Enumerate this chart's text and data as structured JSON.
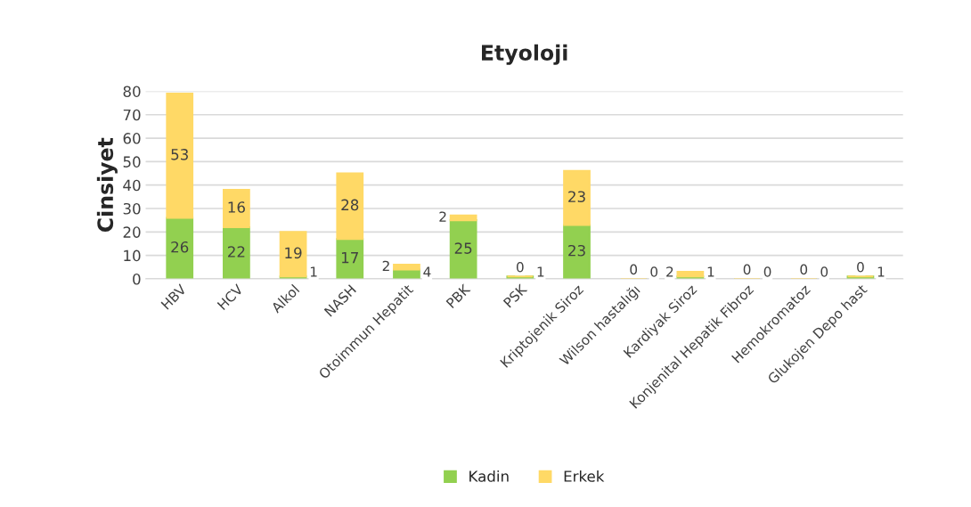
{
  "chart_data": {
    "type": "bar",
    "title": "Etyoloji",
    "ylabel": "Cinsiyet",
    "categories": [
      "HBV",
      "HCV",
      "Alkol",
      "NASH",
      "Otoimmun Hepatit",
      "PBK",
      "PSK",
      "Kriptojenik Siroz",
      "Wilson hastalığı",
      "Kardiyak Siroz",
      "Konjenital Hepatik Fibroz",
      "Hemokromatoz",
      "Glukojen Depo hast"
    ],
    "series": [
      {
        "name": "Kadin",
        "color": "#92d050",
        "values": [
          26,
          22,
          1,
          17,
          4,
          25,
          1,
          23,
          0,
          1,
          0,
          0,
          1
        ]
      },
      {
        "name": "Erkek",
        "color": "#ffd966",
        "values": [
          53,
          16,
          19,
          28,
          2,
          2,
          0,
          23,
          0,
          2,
          0,
          0,
          0
        ]
      }
    ],
    "stacked": true,
    "ylim": [
      0,
      80
    ],
    "yticks": [
      0,
      10,
      20,
      30,
      40,
      50,
      60,
      70,
      80
    ],
    "grid": "y",
    "legend": "bottom",
    "data_labels": true
  }
}
